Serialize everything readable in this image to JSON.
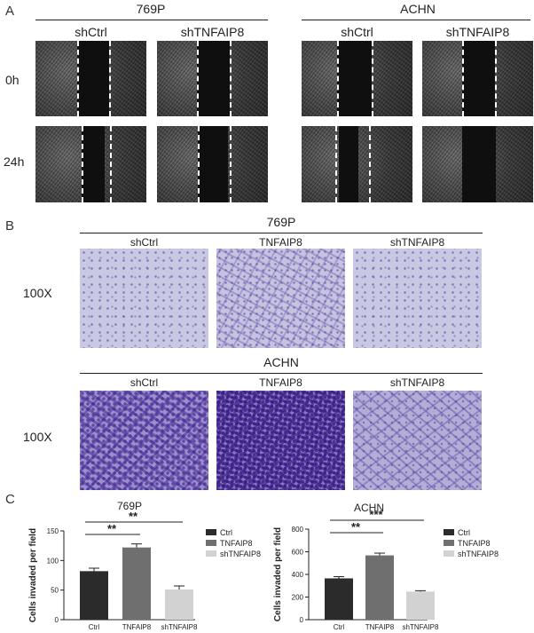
{
  "panels": {
    "a": "A",
    "b": "B",
    "c": "C"
  },
  "wound_healing": {
    "groups": [
      {
        "title": "769P",
        "conditions": [
          "shCtrl",
          "shTNFAIP8"
        ]
      },
      {
        "title": "ACHN",
        "conditions": [
          "shCtrl",
          "shTNFAIP8"
        ]
      }
    ],
    "time_labels": [
      "0h",
      "24h"
    ]
  },
  "transwell": {
    "magnification": "100X",
    "groups": [
      {
        "title": "769P",
        "conditions": [
          "shCtrl",
          "TNFAIP8",
          "shTNFAIP8"
        ]
      },
      {
        "title": "ACHN",
        "conditions": [
          "shCtrl",
          "TNFAIP8",
          "shTNFAIP8"
        ]
      }
    ]
  },
  "colors": {
    "ctrl": "#2b2b2b",
    "tnfaip8": "#6f6f6f",
    "shtnfaip8": "#d2d2d2"
  },
  "chart_data": [
    {
      "type": "bar",
      "title": "769P",
      "ylabel": "Cells invaded per field",
      "categories": [
        "Ctrl",
        "TNFAIP8",
        "shTNFAIP8"
      ],
      "values": [
        82,
        122,
        51
      ],
      "errors": [
        5,
        6,
        6
      ],
      "ylim": [
        0,
        150
      ],
      "yticks": [
        0,
        50,
        100,
        150
      ],
      "legend": [
        "Ctrl",
        "TNFAIP8",
        "shTNFAIP8"
      ],
      "legend_position": "right",
      "significance": [
        {
          "pair": [
            "Ctrl",
            "TNFAIP8"
          ],
          "label": "**"
        },
        {
          "pair": [
            "Ctrl",
            "shTNFAIP8"
          ],
          "label": "**"
        }
      ]
    },
    {
      "type": "bar",
      "title": "ACHN",
      "ylabel": "Cells invaded per field",
      "categories": [
        "Ctrl",
        "TNFAIP8",
        "shTNFAIP8"
      ],
      "values": [
        365,
        568,
        248
      ],
      "errors": [
        15,
        20,
        8
      ],
      "ylim": [
        0,
        800
      ],
      "yticks": [
        0,
        200,
        400,
        600,
        800
      ],
      "legend": [
        "Ctrl",
        "TNFAIP8",
        "shTNFAIP8"
      ],
      "legend_position": "right",
      "significance": [
        {
          "pair": [
            "Ctrl",
            "TNFAIP8"
          ],
          "label": "**"
        },
        {
          "pair": [
            "Ctrl",
            "shTNFAIP8"
          ],
          "label": "***"
        }
      ]
    }
  ]
}
